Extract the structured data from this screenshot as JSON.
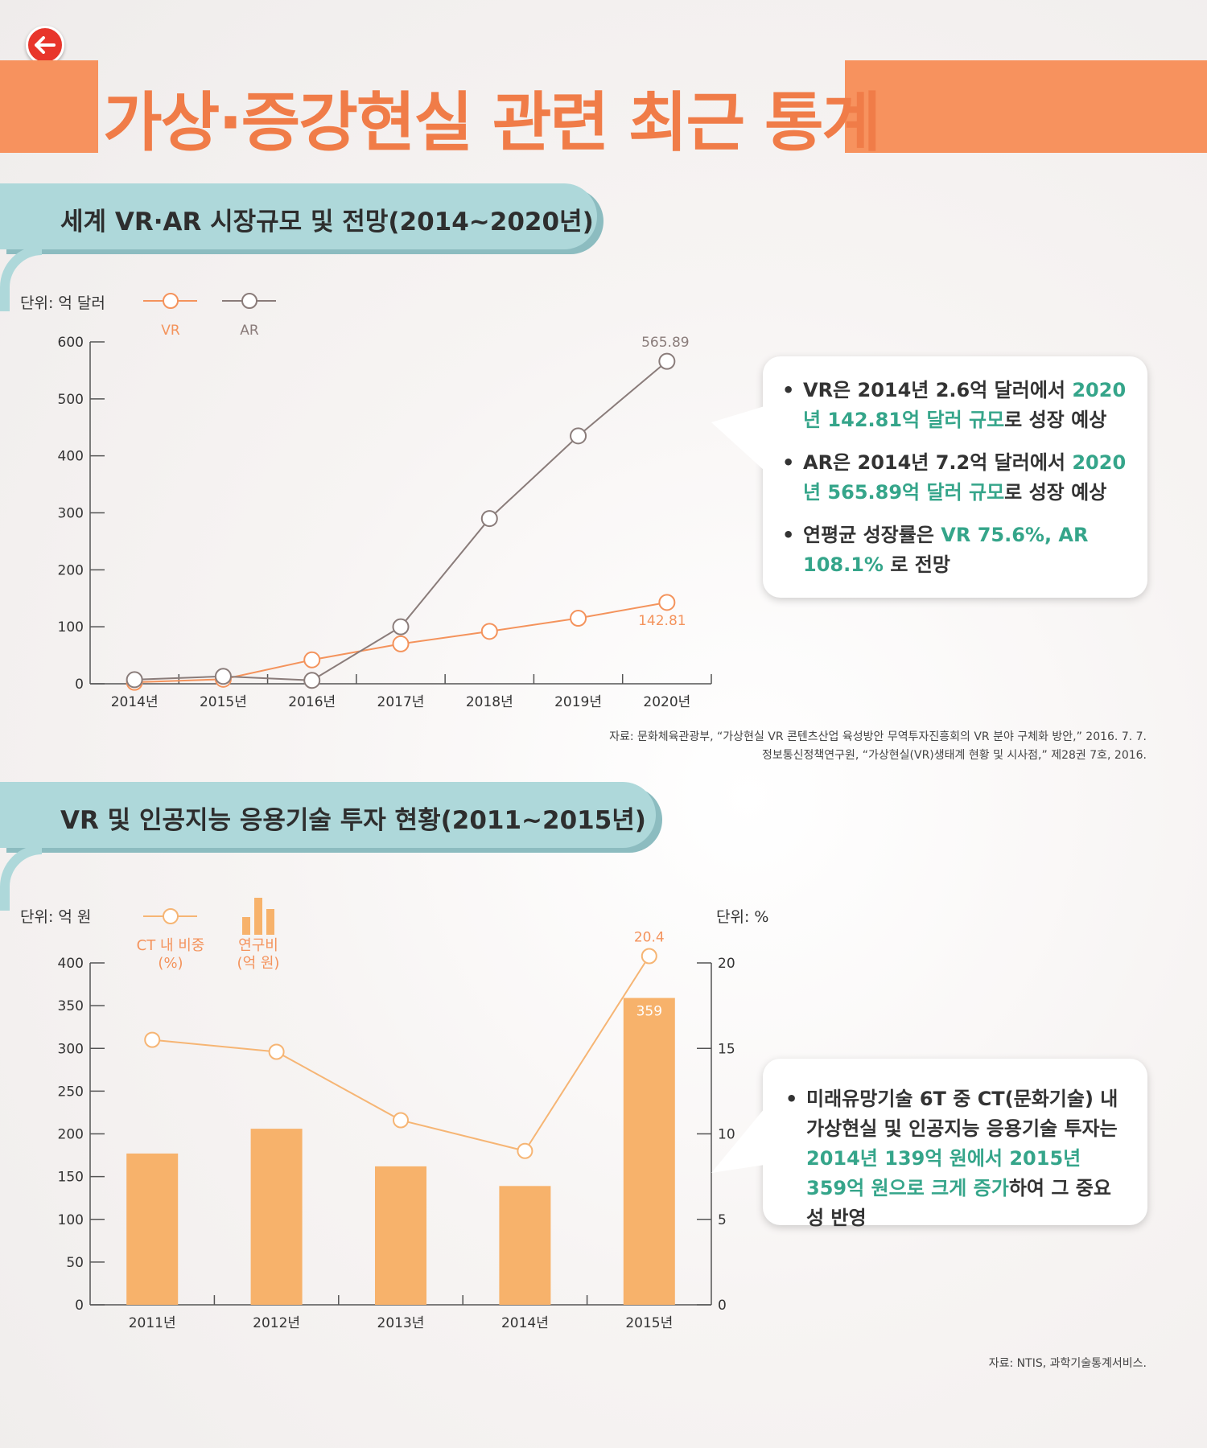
{
  "page": {
    "title": "가상·증강현실 관련 최근 통계"
  },
  "colors": {
    "accent": "#f7925e",
    "vr": "#f4935c",
    "ar": "#8a7c7a",
    "bar": "#f7b26b",
    "share_line": "#f6b574",
    "highlight": "#35a58a",
    "section_head": "#aed8da",
    "back_button": "#e8352b"
  },
  "section1": {
    "heading": "세계 VR·AR 시장규모 및 전망(2014~2020년)",
    "unit": "단위: 억 달러",
    "source_line1": "자료: 문화체육관광부, “가상현실 VR 콘텐츠산업 육성방안 무역투자진흥회의 VR 분야 구체화 방안,” 2016. 7. 7.",
    "source_line2": "정보통신정책연구원, “가상현실(VR)생태계 현황 및 시사점,” 제28권 7호, 2016.",
    "callout": [
      {
        "plain": "VR은 2014년 2.6억 달러에서 ",
        "hl": "2020년 142.81억 달러 규모",
        "tail": "로 성장 예상"
      },
      {
        "plain": "AR은 2014년 7.2억 달러에서 ",
        "hl": "2020년 565.89억 달러 규모",
        "tail": "로 성장 예상"
      },
      {
        "plain": "연평균 성장률은 ",
        "hl": "VR 75.6%, AR 108.1%",
        "tail": " 로 전망"
      }
    ]
  },
  "section2": {
    "heading": "VR 및 인공지능 응용기술 투자 현황(2011~2015년)",
    "unit_left": "단위: 억 원",
    "unit_right": "단위: %",
    "legend_line_l1": "CT 내 비중",
    "legend_line_l2": "(%)",
    "legend_bar_l1": "연구비",
    "legend_bar_l2": "(억 원)",
    "source": "자료: NTIS, 과학기술통계서비스.",
    "callout_plain1": "미래유망기술 6T 중 CT(문화기술) 내 가상현실 및 인공지능 응용기술 투자는 ",
    "callout_hl": "2014년 139억 원에서 2015년 359억 원으로 크게 증가",
    "callout_tail": "하여 그 중요성 반영"
  },
  "chart_data": [
    {
      "type": "line",
      "categories": [
        "2014년",
        "2015년",
        "2016년",
        "2017년",
        "2018년",
        "2019년",
        "2020년"
      ],
      "series": [
        {
          "name": "VR",
          "values": [
            2.6,
            8,
            42,
            70,
            92,
            115,
            142.81
          ]
        },
        {
          "name": "AR",
          "values": [
            7.2,
            13,
            6,
            100,
            290,
            435,
            565.89
          ]
        }
      ],
      "labels": {
        "AR_last": "565.89",
        "VR_last": "142.81"
      },
      "ylim": [
        0,
        600
      ],
      "yticks": [
        0,
        100,
        200,
        300,
        400,
        500,
        600
      ],
      "ylabel": "단위: 억 달러",
      "legend": "top-left",
      "grid": false
    },
    {
      "type": "bar",
      "categories": [
        "2011년",
        "2012년",
        "2013년",
        "2014년",
        "2015년"
      ],
      "series": [
        {
          "name": "연구비 (억 원)",
          "values": [
            177,
            206,
            162,
            139,
            359
          ],
          "axis": "left"
        },
        {
          "name": "CT 내 비중 (%)",
          "values": [
            15.5,
            14.8,
            10.8,
            9,
            20.4
          ],
          "axis": "right",
          "type": "line"
        }
      ],
      "labels": {
        "bar_last": "359",
        "share_last": "20.4"
      },
      "ylim_left": [
        0,
        400
      ],
      "yticks_left": [
        0,
        50,
        100,
        150,
        200,
        250,
        300,
        350,
        400
      ],
      "ylim_right": [
        0,
        20
      ],
      "yticks_right": [
        0,
        5,
        10,
        15,
        20
      ],
      "ylabel_left": "단위: 억 원",
      "ylabel_right": "단위: %",
      "legend": "top-left",
      "grid": false
    }
  ]
}
